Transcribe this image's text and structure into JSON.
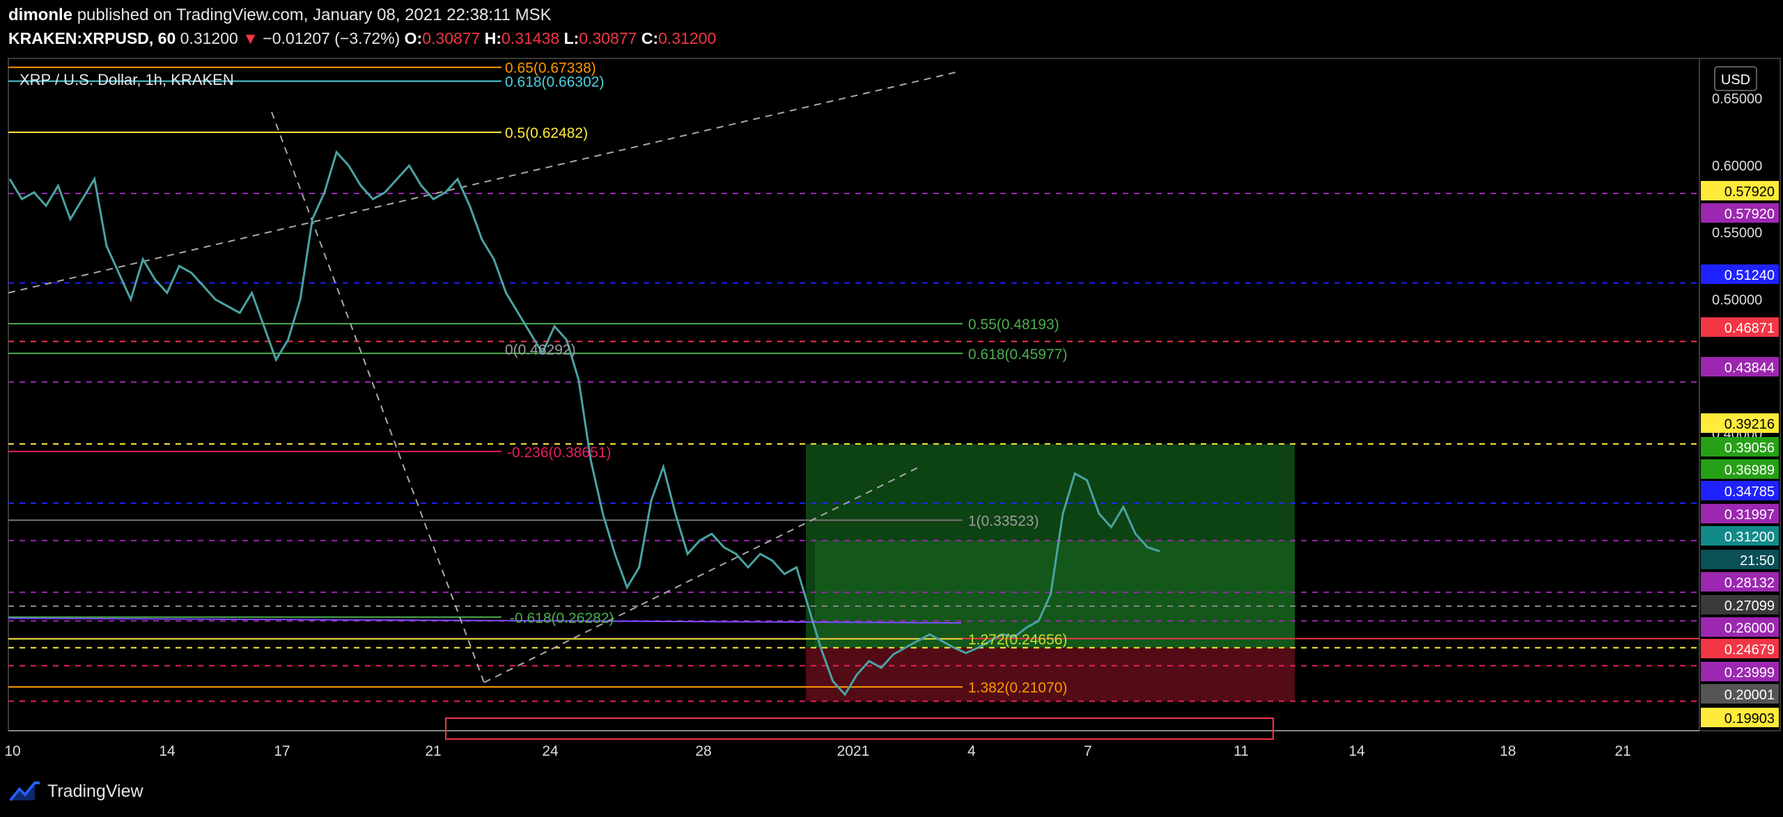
{
  "header": {
    "author": "dimonle",
    "published_text": "published on TradingView.com, January 08, 2021 22:38:11 MSK",
    "symbol": "KRAKEN:XRPUSD, 60",
    "last": "0.31200",
    "change": "−0.01207 (−3.72%)",
    "o_label": "O:",
    "o_value": "0.30877",
    "h_label": "H:",
    "h_value": "0.31438",
    "l_label": "L:",
    "l_value": "0.30877",
    "c_label": "C:",
    "c_value": "0.31200"
  },
  "chart_data": {
    "type": "line",
    "title": "XRP / U.S. Dollar, 1h, KRAKEN",
    "currency": "USD",
    "xlabel": "",
    "ylabel": "",
    "ylim": [
      0.178,
      0.68
    ],
    "x_ticks": [
      "10",
      "14",
      "17",
      "21",
      "24",
      "28",
      "2021",
      "4",
      "7",
      "11",
      "14",
      "18",
      "21"
    ],
    "y_ticks": [
      "0.65000",
      "0.60000",
      "0.55000",
      "0.50000",
      "0.45000",
      "0.40000"
    ],
    "series": [
      {
        "values": [
          0.59,
          0.575,
          0.58,
          0.57,
          0.585,
          0.56,
          0.575,
          0.59,
          0.54,
          0.52,
          0.5,
          0.53,
          0.515,
          0.505,
          0.525,
          0.52,
          0.51,
          0.5,
          0.495,
          0.49,
          0.505,
          0.48,
          0.455,
          0.47,
          0.5,
          0.56,
          0.58,
          0.61,
          0.6,
          0.585,
          0.575,
          0.58,
          0.59,
          0.6,
          0.585,
          0.575,
          0.58,
          0.59,
          0.57,
          0.545,
          0.53,
          0.505,
          0.49,
          0.475,
          0.46,
          0.48,
          0.47,
          0.44,
          0.38,
          0.34,
          0.31,
          0.285,
          0.3,
          0.35,
          0.375,
          0.34,
          0.31,
          0.32,
          0.325,
          0.315,
          0.31,
          0.3,
          0.31,
          0.305,
          0.295,
          0.3,
          0.27,
          0.24,
          0.215,
          0.205,
          0.22,
          0.23,
          0.225,
          0.235,
          0.24,
          0.245,
          0.25,
          0.245,
          0.24,
          0.236,
          0.24,
          0.245,
          0.25,
          0.248,
          0.255,
          0.26,
          0.28,
          0.34,
          0.37,
          0.365,
          0.34,
          0.33,
          0.345,
          0.325,
          0.315,
          0.312
        ]
      }
    ],
    "fib_labels": [
      {
        "text": "0.65(0.67338)",
        "color": "#ff9800"
      },
      {
        "text": "0.618(0.66302)",
        "color": "#4dd0e1"
      },
      {
        "text": "0.5(0.62482)",
        "color": "#ffeb3b"
      },
      {
        "text": "0.55(0.48193)",
        "color": "#4caf50"
      },
      {
        "text": "0.618(0.45977)",
        "color": "#4caf50"
      },
      {
        "text": "0(0.46292)",
        "color": "#9e9e9e"
      },
      {
        "text": "-0.236(0.38651)",
        "color": "#e91e63"
      },
      {
        "text": "1(0.33523)",
        "color": "#9e9e9e"
      },
      {
        "text": "-0.618(0.26282)",
        "color": "#4caf50"
      },
      {
        "text": "1.272(0.24656)",
        "color": "#cddc39"
      },
      {
        "text": "1.382(0.21070)",
        "color": "#ff9800"
      }
    ],
    "price_tags": [
      {
        "text": "0.57920",
        "bg": "#ffeb3b",
        "fg": "#000"
      },
      {
        "text": "0.57920",
        "bg": "#9c27b0",
        "fg": "#fff"
      },
      {
        "text": "0.51240",
        "bg": "#1e22ff",
        "fg": "#fff"
      },
      {
        "text": "0.46871",
        "bg": "#f23645",
        "fg": "#fff"
      },
      {
        "text": "0.43844",
        "bg": "#9c27b0",
        "fg": "#fff"
      },
      {
        "text": "0.39216",
        "bg": "#ffeb3b",
        "fg": "#000"
      },
      {
        "text": "0.39056",
        "bg": "#26a017",
        "fg": "#fff"
      },
      {
        "text": "0.36989",
        "bg": "#26a017",
        "fg": "#fff"
      },
      {
        "text": "0.34785",
        "bg": "#1e22ff",
        "fg": "#fff"
      },
      {
        "text": "0.31997",
        "bg": "#9c27b0",
        "fg": "#fff"
      },
      {
        "text": "0.31200",
        "bg": "#138a8a",
        "fg": "#fff"
      },
      {
        "text": "21:50",
        "bg": "#0b4f57",
        "fg": "#fff"
      },
      {
        "text": "0.28132",
        "bg": "#9c27b0",
        "fg": "#fff"
      },
      {
        "text": "0.27099",
        "bg": "#3a3a3a",
        "fg": "#fff"
      },
      {
        "text": "0.26000",
        "bg": "#9c27b0",
        "fg": "#fff"
      },
      {
        "text": "0.24679",
        "bg": "#f23645",
        "fg": "#fff"
      },
      {
        "text": "0.23999",
        "bg": "#9c27b0",
        "fg": "#fff"
      },
      {
        "text": "0.20001",
        "bg": "#555555",
        "fg": "#fff"
      },
      {
        "text": "0.19903",
        "bg": "#ffeb3b",
        "fg": "#000"
      }
    ],
    "colors": {
      "price_line": "#4aa3a3",
      "long_profit": "#0f4d16",
      "long_loss": "#5c0c18"
    }
  },
  "footer": {
    "brand": "TradingView"
  }
}
